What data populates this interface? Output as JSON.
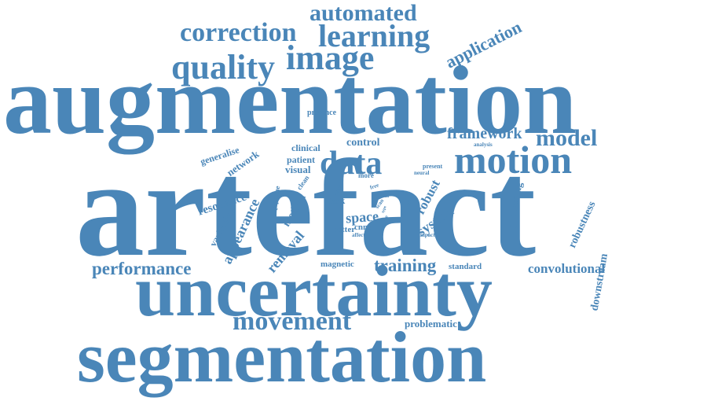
{
  "color": "#4a86b8",
  "words": [
    {
      "text": "artefact"
    },
    {
      "text": "augmentation"
    },
    {
      "text": "segmentation"
    },
    {
      "text": "uncertainty"
    },
    {
      "text": "motion"
    },
    {
      "text": "data"
    },
    {
      "text": "movement"
    },
    {
      "text": "image"
    },
    {
      "text": "quality"
    },
    {
      "text": "learning"
    },
    {
      "text": "correction"
    },
    {
      "text": "automated"
    },
    {
      "text": "application"
    },
    {
      "text": "model"
    },
    {
      "text": "framework"
    },
    {
      "text": "performance"
    },
    {
      "text": "convolutional"
    },
    {
      "text": "training"
    },
    {
      "text": "removal"
    },
    {
      "text": "appearance"
    },
    {
      "text": "resonance"
    },
    {
      "text": "variability"
    },
    {
      "text": "method"
    },
    {
      "text": "space"
    },
    {
      "text": "system"
    },
    {
      "text": "robust"
    },
    {
      "text": "processing"
    },
    {
      "text": "robustness"
    },
    {
      "text": "downstream"
    },
    {
      "text": "problematic"
    },
    {
      "text": "standard"
    },
    {
      "text": "magnetic"
    },
    {
      "text": "control"
    },
    {
      "text": "clinical"
    },
    {
      "text": "patient"
    },
    {
      "text": "visual"
    },
    {
      "text": "network"
    },
    {
      "text": "generalise"
    },
    {
      "text": "presence"
    },
    {
      "text": "pipeline"
    },
    {
      "text": "clean"
    },
    {
      "text": "task"
    },
    {
      "text": "cnns"
    },
    {
      "text": "better"
    },
    {
      "text": "affect"
    },
    {
      "text": "more"
    },
    {
      "text": "free"
    },
    {
      "text": "real"
    },
    {
      "text": "cause"
    },
    {
      "text": "scan"
    },
    {
      "text": "source"
    },
    {
      "text": "neural"
    },
    {
      "text": "world"
    },
    {
      "text": "present"
    },
    {
      "text": "impact"
    },
    {
      "text": "analysis"
    },
    {
      "text": "type"
    }
  ]
}
